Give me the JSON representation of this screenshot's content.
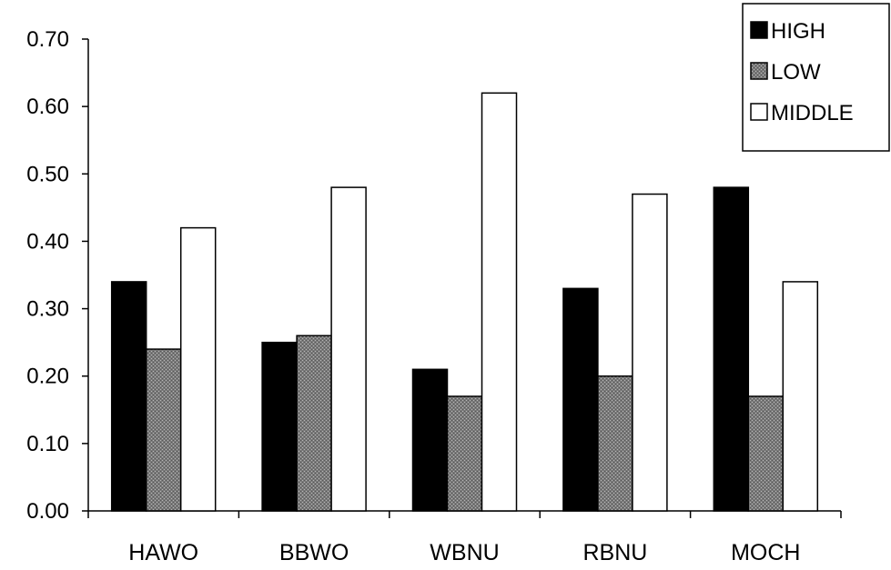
{
  "chart_data": {
    "type": "bar",
    "title": "",
    "xlabel": "",
    "ylabel": "",
    "categories": [
      "HAWO",
      "BBWO",
      "WBNU",
      "RBNU",
      "MOCH"
    ],
    "series": [
      {
        "name": "HIGH",
        "values": [
          0.34,
          0.25,
          0.21,
          0.33,
          0.48
        ]
      },
      {
        "name": "LOW",
        "values": [
          0.24,
          0.26,
          0.17,
          0.2,
          0.17
        ]
      },
      {
        "name": "MIDDLE",
        "values": [
          0.42,
          0.48,
          0.62,
          0.47,
          0.34
        ]
      }
    ],
    "ylim": [
      0,
      0.7
    ],
    "yticks": [
      "0.00",
      "0.10",
      "0.20",
      "0.30",
      "0.40",
      "0.50",
      "0.60",
      "0.70"
    ],
    "grid": false,
    "legend_position": "top-right"
  },
  "colors": {
    "HIGH": "#000000",
    "LOW": "#8a8a8a",
    "MIDDLE": "#ffffff"
  }
}
